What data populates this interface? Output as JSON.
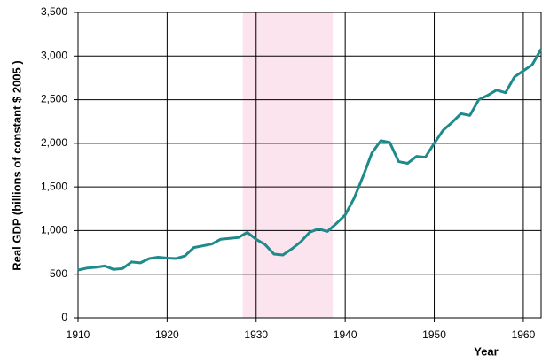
{
  "chart_data": {
    "type": "line",
    "x_label": "Year",
    "y_label": "Real GDP (billions of constant $ 2005 )",
    "x": [
      1910,
      1911,
      1912,
      1913,
      1914,
      1915,
      1916,
      1917,
      1918,
      1919,
      1920,
      1921,
      1922,
      1923,
      1924,
      1925,
      1926,
      1927,
      1928,
      1929,
      1930,
      1931,
      1932,
      1933,
      1934,
      1935,
      1936,
      1937,
      1938,
      1939,
      1940,
      1941,
      1942,
      1943,
      1944,
      1945,
      1946,
      1947,
      1948,
      1949,
      1950,
      1951,
      1952,
      1953,
      1954,
      1955,
      1956,
      1957,
      1958,
      1959,
      1960,
      1961,
      1962
    ],
    "values": [
      548,
      570,
      580,
      595,
      555,
      565,
      640,
      630,
      680,
      695,
      685,
      680,
      710,
      805,
      825,
      845,
      900,
      910,
      920,
      980,
      900,
      840,
      730,
      720,
      790,
      870,
      980,
      1020,
      990,
      1080,
      1180,
      1370,
      1620,
      1890,
      2030,
      2010,
      1790,
      1770,
      1850,
      1840,
      2000,
      2150,
      2240,
      2340,
      2320,
      2500,
      2550,
      2610,
      2580,
      2760,
      2830,
      2900,
      3080
    ],
    "color": "#1f8a8a",
    "shaded_region": [
      1928.5,
      1938.6
    ],
    "shaded_color": "#fce4ef",
    "xlim": [
      1910,
      1962
    ],
    "ylim": [
      0,
      3500
    ],
    "xticks": [
      1910,
      1920,
      1930,
      1940,
      1950,
      1960
    ],
    "yticks": [
      0,
      500,
      {
        "value": 1000,
        "label": "1,000"
      },
      {
        "value": 1500,
        "label": "1,500"
      },
      {
        "value": 2000,
        "label": "2,000"
      },
      {
        "value": 2500,
        "label": "2,500"
      },
      {
        "value": 3000,
        "label": "3,000"
      },
      {
        "value": 3500,
        "label": "3,500"
      }
    ],
    "grid": true
  }
}
